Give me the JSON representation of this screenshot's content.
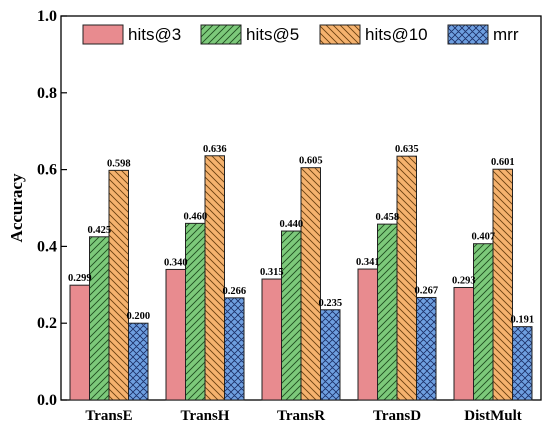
{
  "colors": {
    "hits3": "#e88b8f",
    "hits5": "#7cc97a",
    "hits10": "#f5b26e",
    "mrr": "#6e9fe0"
  },
  "chart_data": {
    "type": "bar",
    "title": "",
    "xlabel": "",
    "ylabel": "Accuracy",
    "ylim": [
      0,
      1.0
    ],
    "yticks": [
      "0.0",
      "0.2",
      "0.4",
      "0.6",
      "0.8",
      "1.0"
    ],
    "categories": [
      "TransE",
      "TransH",
      "TransR",
      "TransD",
      "DistMult"
    ],
    "legend_position": "top",
    "grid": false,
    "series": [
      {
        "name": "hits@3",
        "key": "hits3",
        "hatch": "none",
        "values": [
          0.299,
          0.34,
          0.315,
          0.341,
          0.293
        ],
        "labels": [
          "0.299",
          "0.340",
          "0.315",
          "0.341",
          "0.293"
        ]
      },
      {
        "name": "hits@5",
        "key": "hits5",
        "hatch": "diagonal",
        "values": [
          0.425,
          0.46,
          0.44,
          0.458,
          0.407
        ],
        "labels": [
          "0.425",
          "0.460",
          "0.440",
          "0.458",
          "0.407"
        ]
      },
      {
        "name": "hits@10",
        "key": "hits10",
        "hatch": "backdiagonal",
        "values": [
          0.598,
          0.636,
          0.605,
          0.635,
          0.601
        ],
        "labels": [
          "0.598",
          "0.636",
          "0.605",
          "0.635",
          "0.601"
        ]
      },
      {
        "name": "mrr",
        "key": "mrr",
        "hatch": "crosshatch",
        "values": [
          0.2,
          0.266,
          0.235,
          0.267,
          0.191
        ],
        "labels": [
          "0.200",
          "0.266",
          "0.235",
          "0.267",
          "0.191"
        ]
      }
    ]
  }
}
